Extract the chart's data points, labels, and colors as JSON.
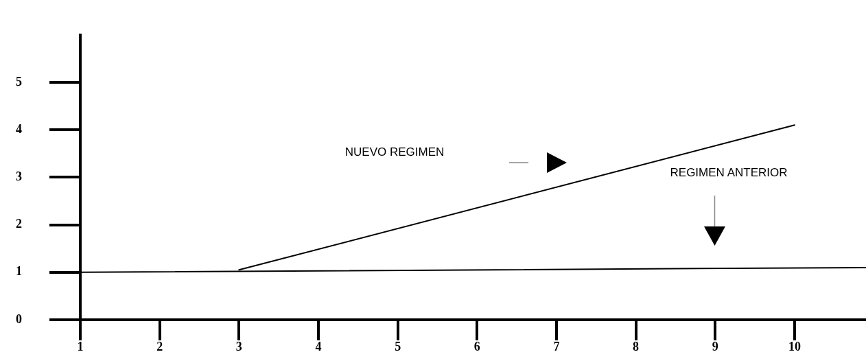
{
  "chart_data": {
    "type": "line",
    "xlim": [
      1,
      10.9
    ],
    "xticks": [
      1,
      2,
      3,
      4,
      5,
      6,
      7,
      8,
      9,
      10
    ],
    "ylim": [
      0,
      6
    ],
    "yticks": [
      0,
      1,
      2,
      3,
      4,
      5
    ],
    "grid": false,
    "legend": false,
    "marker": "none",
    "line_style": "solid",
    "annotations": [
      "NUEVO REGIMEN",
      "REGIMEN ANTERIOR"
    ],
    "series": [
      {
        "color": "#000000",
        "x": [
          3,
          10
        ],
        "values": [
          1.05,
          4.1
        ]
      },
      {
        "color": "#000000",
        "x": [
          1,
          10.9
        ],
        "values": [
          1,
          1.1
        ]
      }
    ]
  }
}
